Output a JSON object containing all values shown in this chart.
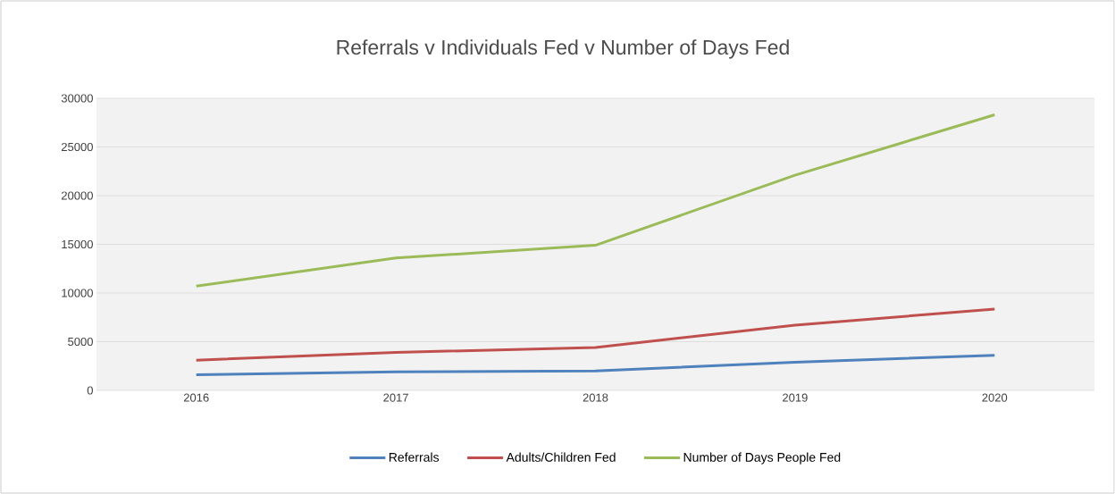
{
  "chart_data": {
    "type": "line",
    "title": "Referrals v Individuals Fed v Number of Days Fed",
    "categories": [
      "2016",
      "2017",
      "2018",
      "2019",
      "2020"
    ],
    "series": [
      {
        "name": "Referrals",
        "color": "#4f81bd",
        "values": [
          1600,
          1900,
          2000,
          2900,
          3600
        ]
      },
      {
        "name": "Adults/Children Fed",
        "color": "#c0504d",
        "values": [
          3100,
          3900,
          4400,
          6700,
          8350
        ]
      },
      {
        "name": "Number of Days People Fed",
        "color": "#9bbb59",
        "values": [
          10700,
          13600,
          14900,
          22100,
          28300
        ]
      }
    ],
    "ylim": [
      0,
      30000
    ],
    "yticks": [
      0,
      5000,
      10000,
      15000,
      20000,
      25000,
      30000
    ],
    "grid": "y",
    "legend": "bottom",
    "marker": "none",
    "line_style": "solid"
  }
}
